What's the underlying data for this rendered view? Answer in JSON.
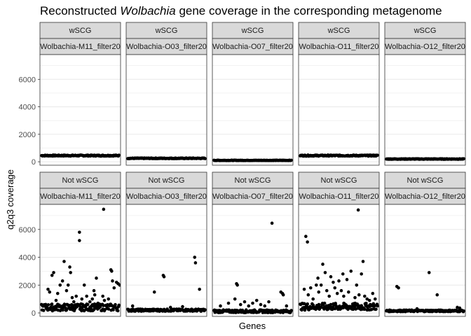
{
  "chart_data": {
    "type": "scatter",
    "title": "Reconstructed Wolbachia gene coverage in the corresponding metagenome",
    "title_parts": {
      "before": "Reconstructed ",
      "italic": "Wolbachia",
      "after": " gene coverage in the corresponding metagenome"
    },
    "xlabel": "Genes",
    "ylabel": "q2q3 coverage",
    "ylim": [
      -250,
      7800
    ],
    "y_ticks": [
      "0",
      "2000",
      "4000",
      "6000"
    ],
    "y_tick_values": [
      0,
      2000,
      4000,
      6000
    ],
    "grid": true,
    "theme": "bw",
    "point_color": "#000000",
    "row_strips": [
      "wSCG",
      "Not wSCG"
    ],
    "col_strips": [
      "Wolbachia-M11_filter20",
      "Wolbachia-O03_filter20",
      "Wolbachia-O07_filter20",
      "Wolbachia-O11_filter20",
      "Wolbachia-O12_filter20"
    ],
    "panels": [
      {
        "row": "wSCG",
        "sample": "Wolbachia-M11_filter20",
        "baseline": 450,
        "spread": 40,
        "outliers": []
      },
      {
        "row": "wSCG",
        "sample": "Wolbachia-O03_filter20",
        "baseline": 250,
        "spread": 25,
        "outliers": []
      },
      {
        "row": "wSCG",
        "sample": "Wolbachia-O07_filter20",
        "baseline": 100,
        "spread": 15,
        "outliers": []
      },
      {
        "row": "wSCG",
        "sample": "Wolbachia-O11_filter20",
        "baseline": 450,
        "spread": 40,
        "outliers": []
      },
      {
        "row": "wSCG",
        "sample": "Wolbachia-O12_filter20",
        "baseline": 200,
        "spread": 20,
        "outliers": []
      },
      {
        "row": "Not wSCG",
        "sample": "Wolbachia-M11_filter20",
        "baseline": 400,
        "spread": 250,
        "outliers": [
          [
            0.1,
            1700
          ],
          [
            0.12,
            1500
          ],
          [
            0.15,
            2700
          ],
          [
            0.17,
            2900
          ],
          [
            0.22,
            1400
          ],
          [
            0.25,
            2000
          ],
          [
            0.28,
            2300
          ],
          [
            0.3,
            3700
          ],
          [
            0.33,
            1600
          ],
          [
            0.35,
            2000
          ],
          [
            0.37,
            3300
          ],
          [
            0.38,
            2900
          ],
          [
            0.4,
            1100
          ],
          [
            0.45,
            1200
          ],
          [
            0.49,
            5800
          ],
          [
            0.49,
            5200
          ],
          [
            0.52,
            1000
          ],
          [
            0.55,
            2000
          ],
          [
            0.58,
            1200
          ],
          [
            0.65,
            1000
          ],
          [
            0.67,
            1600
          ],
          [
            0.68,
            1300
          ],
          [
            0.7,
            2500
          ],
          [
            0.78,
            1200
          ],
          [
            0.8,
            900
          ],
          [
            0.79,
            7450
          ],
          [
            0.85,
            1000
          ],
          [
            0.88,
            3100
          ],
          [
            0.89,
            3000
          ],
          [
            0.9,
            2300
          ],
          [
            0.95,
            2200
          ],
          [
            0.97,
            2100
          ],
          [
            0.99,
            2000
          ],
          [
            0.2,
            900
          ],
          [
            0.42,
            800
          ],
          [
            0.62,
            800
          ],
          [
            0.72,
            700
          ],
          [
            0.92,
            1800
          ]
        ]
      },
      {
        "row": "Not wSCG",
        "sample": "Wolbachia-O03_filter20",
        "baseline": 200,
        "spread": 80,
        "outliers": [
          [
            0.08,
            500
          ],
          [
            0.35,
            1500
          ],
          [
            0.46,
            2700
          ],
          [
            0.47,
            2600
          ],
          [
            0.85,
            4000
          ],
          [
            0.86,
            3600
          ],
          [
            0.91,
            1700
          ],
          [
            0.55,
            400
          ],
          [
            0.7,
            450
          ]
        ]
      },
      {
        "row": "Not wSCG",
        "sample": "Wolbachia-O07_filter20",
        "baseline": 120,
        "spread": 100,
        "outliers": [
          [
            0.3,
            2100
          ],
          [
            0.31,
            2000
          ],
          [
            0.28,
            1000
          ],
          [
            0.1,
            500
          ],
          [
            0.35,
            600
          ],
          [
            0.4,
            800
          ],
          [
            0.45,
            500
          ],
          [
            0.5,
            700
          ],
          [
            0.55,
            900
          ],
          [
            0.6,
            600
          ],
          [
            0.65,
            500
          ],
          [
            0.7,
            800
          ],
          [
            0.74,
            6450
          ],
          [
            0.85,
            1500
          ],
          [
            0.87,
            1400
          ],
          [
            0.88,
            1300
          ],
          [
            0.92,
            500
          ],
          [
            0.2,
            700
          ]
        ]
      },
      {
        "row": "Not wSCG",
        "sample": "Wolbachia-O11_filter20",
        "baseline": 450,
        "spread": 250,
        "outliers": [
          [
            0.07,
            1700
          ],
          [
            0.09,
            5500
          ],
          [
            0.11,
            5100
          ],
          [
            0.12,
            1300
          ],
          [
            0.15,
            1800
          ],
          [
            0.18,
            1000
          ],
          [
            0.22,
            2000
          ],
          [
            0.24,
            2500
          ],
          [
            0.25,
            1500
          ],
          [
            0.28,
            2000
          ],
          [
            0.3,
            3500
          ],
          [
            0.33,
            2900
          ],
          [
            0.35,
            1600
          ],
          [
            0.38,
            1200
          ],
          [
            0.4,
            2600
          ],
          [
            0.43,
            2200
          ],
          [
            0.45,
            1800
          ],
          [
            0.48,
            1400
          ],
          [
            0.5,
            2300
          ],
          [
            0.53,
            1600
          ],
          [
            0.55,
            2800
          ],
          [
            0.56,
            1200
          ],
          [
            0.6,
            2400
          ],
          [
            0.62,
            1500
          ],
          [
            0.65,
            3000
          ],
          [
            0.7,
            1100
          ],
          [
            0.72,
            2000
          ],
          [
            0.74,
            7400
          ],
          [
            0.75,
            1300
          ],
          [
            0.78,
            2800
          ],
          [
            0.8,
            3700
          ],
          [
            0.82,
            1200
          ],
          [
            0.85,
            1000
          ],
          [
            0.88,
            900
          ],
          [
            0.92,
            1400
          ],
          [
            0.95,
            1000
          ]
        ]
      },
      {
        "row": "Not wSCG",
        "sample": "Wolbachia-O12_filter20",
        "baseline": 150,
        "spread": 60,
        "outliers": [
          [
            0.15,
            1900
          ],
          [
            0.17,
            1800
          ],
          [
            0.55,
            2900
          ],
          [
            0.65,
            1300
          ],
          [
            0.9,
            400
          ],
          [
            0.93,
            350
          ],
          [
            0.4,
            300
          ]
        ]
      }
    ]
  }
}
